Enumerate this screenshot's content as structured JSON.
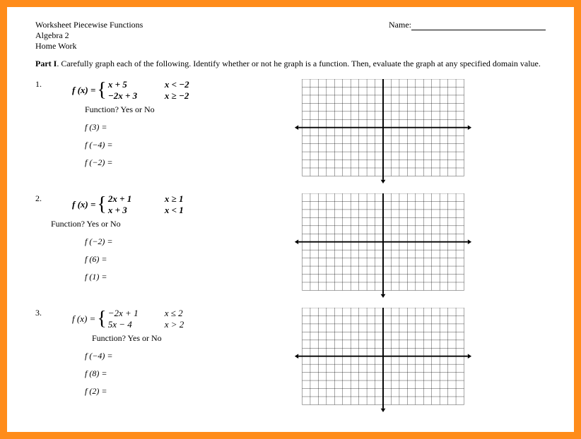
{
  "header": {
    "title": "Worksheet Piecewise Functions",
    "course": "Algebra 2",
    "type": "Home Work",
    "name_label": "Name:"
  },
  "instructions": {
    "part_label": "Part I",
    "text": "Carefully graph each of the following.  Identify whether or not he graph is a function.  Then, evaluate the graph at any specified domain value."
  },
  "problems": [
    {
      "num": "1.",
      "fx": "f (x) =",
      "piece1_expr": "x + 5",
      "piece1_cond": "x < −2",
      "piece2_expr": "−2x + 3",
      "piece2_cond": "x ≥ −2",
      "fq": "Function?   Yes   or   No",
      "evals": [
        "f (3) =",
        "f (−4) =",
        "f (−2) ="
      ]
    },
    {
      "num": "2.",
      "fx": "f (x) =",
      "piece1_expr": "2x + 1",
      "piece1_cond": "x ≥ 1",
      "piece2_expr": "x  + 3",
      "piece2_cond": "x < 1",
      "fq": "Function?   Yes   or   No",
      "evals": [
        "f (−2) =",
        "f (6) =",
        "f (1) ="
      ]
    },
    {
      "num": "3.",
      "fx": "f (x) =",
      "piece1_expr": "−2x + 1",
      "piece1_cond": "x ≤ 2",
      "piece2_expr": "5x − 4",
      "piece2_cond": "x > 2",
      "fq": "Function?   Yes   or   No",
      "evals": [
        "f (−4) =",
        "f (8) =",
        "f (2) ="
      ]
    }
  ],
  "grid_style": {
    "cols": 20,
    "rows": 12,
    "cell": 13,
    "grid_color": "#000000",
    "grid_stroke": 0.4,
    "axis_color": "#000000",
    "axis_stroke": 2.2,
    "arrow_size": 6
  }
}
